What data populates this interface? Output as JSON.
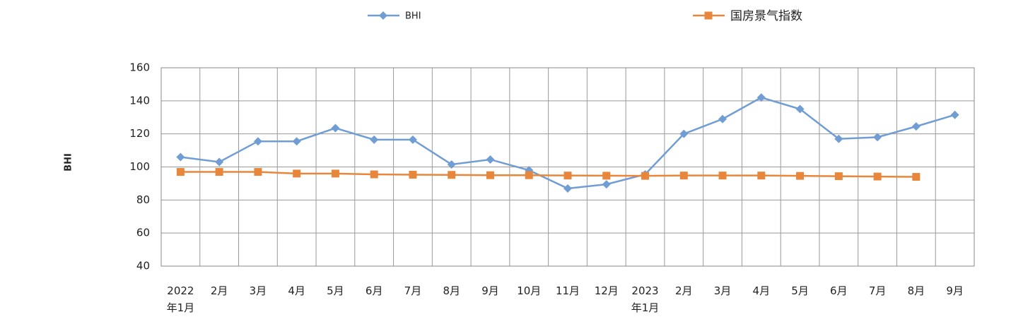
{
  "chart_data": {
    "type": "line",
    "y_label": "BHI",
    "categories": [
      "2022\n年1月",
      "2月",
      "3月",
      "4月",
      "5月",
      "6月",
      "7月",
      "8月",
      "9月",
      "10月",
      "11月",
      "12月",
      "2023\n年1月",
      "2月",
      "3月",
      "4月",
      "5月",
      "6月",
      "7月",
      "8月",
      "9月"
    ],
    "series": [
      {
        "name": "BHI",
        "color": "#709dd4",
        "marker": "diamond",
        "values": [
          106,
          103,
          115.5,
          115.5,
          123.5,
          116.5,
          116.5,
          101.5,
          104.5,
          98,
          87,
          89.5,
          95.5,
          120,
          129,
          142,
          135,
          117,
          118,
          124.5,
          131.5
        ]
      },
      {
        "name": "国房景气指数",
        "color": "#e8873c",
        "marker": "square",
        "values": [
          97,
          97,
          97,
          96,
          96,
          95.5,
          95.3,
          95.2,
          95,
          95,
          94.8,
          94.7,
          94.6,
          94.8,
          94.8,
          94.8,
          94.6,
          94.4,
          94.2,
          94,
          null
        ]
      }
    ],
    "ylim": [
      40,
      160
    ],
    "yticks": [
      40,
      60,
      80,
      100,
      120,
      140,
      160
    ],
    "grid": true,
    "legend": "top"
  }
}
